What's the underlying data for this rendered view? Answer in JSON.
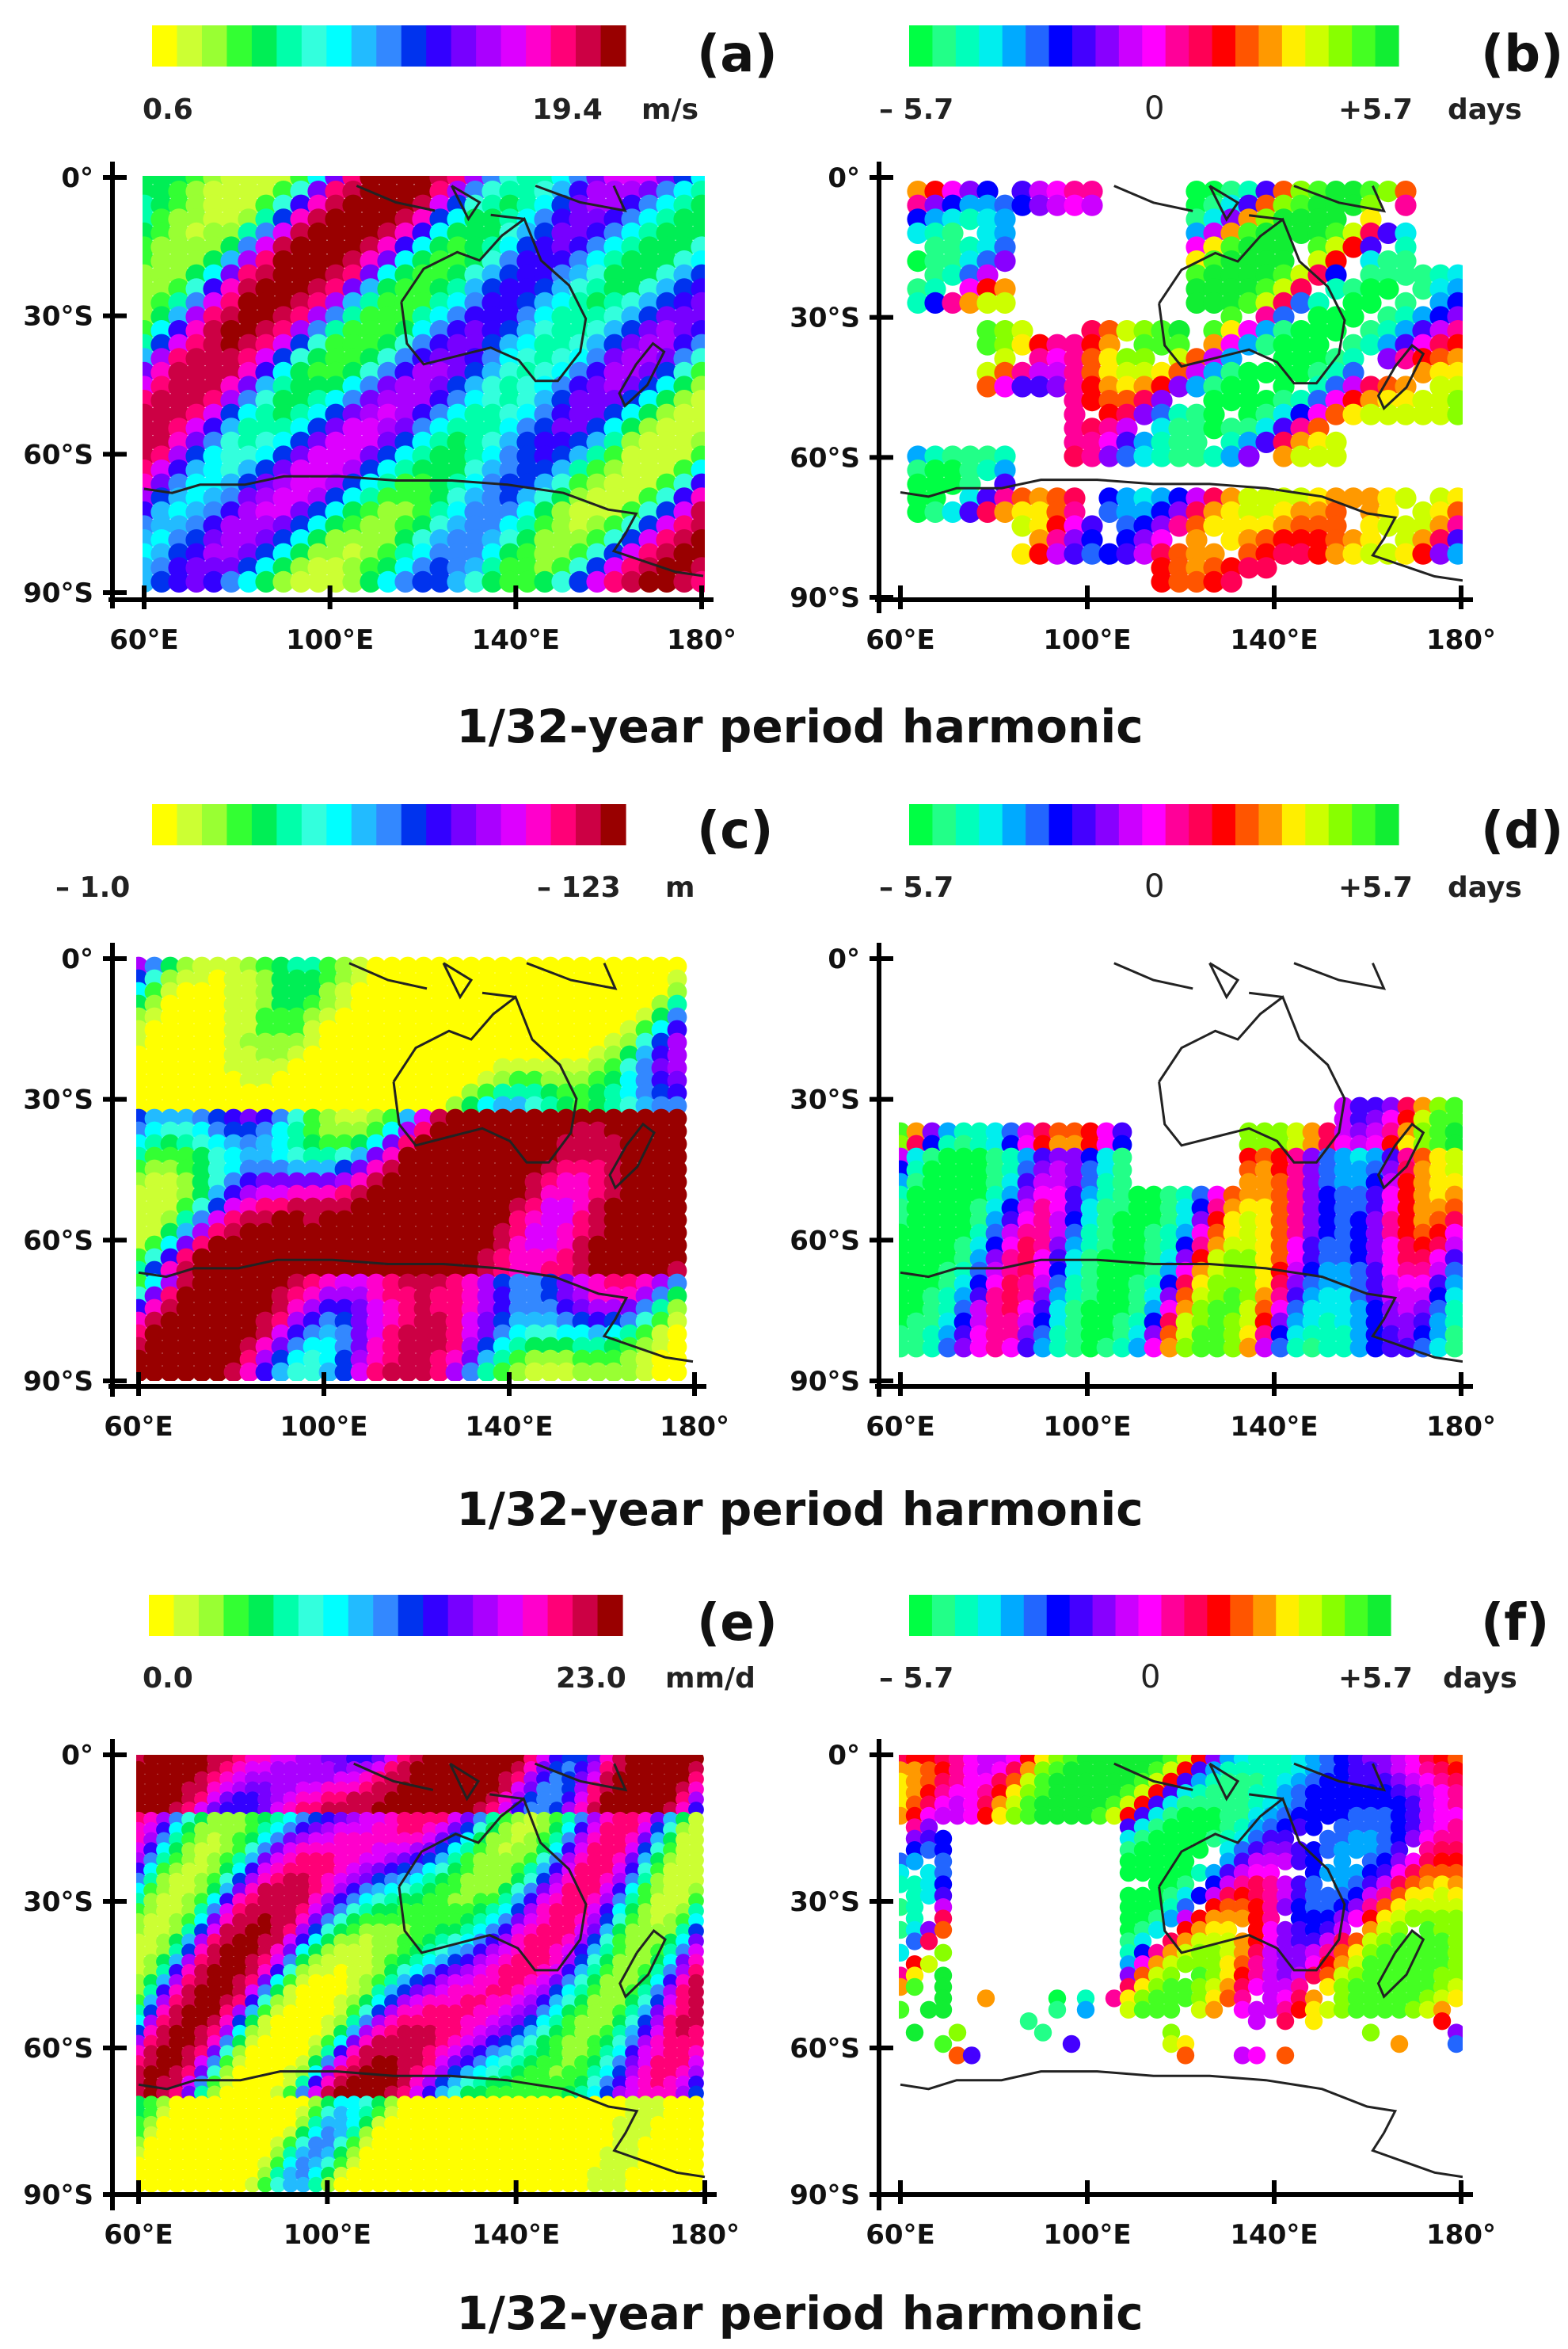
{
  "figure": {
    "harmonic_caption": "1/32-year period  harmonic"
  },
  "palettes": {
    "amplitude": [
      "#ffff00",
      "#ccff33",
      "#99ff33",
      "#33ff33",
      "#00ee55",
      "#00ffaa",
      "#33ffdd",
      "#00ffff",
      "#22bbff",
      "#3388ff",
      "#0033ee",
      "#3300ff",
      "#7700ff",
      "#aa00ff",
      "#dd00ff",
      "#ff00cc",
      "#ff0077",
      "#cc0044",
      "#990000"
    ],
    "phase": [
      "#00ff44",
      "#22ff88",
      "#00ffbb",
      "#00eeee",
      "#00aaff",
      "#2266ff",
      "#0000ff",
      "#4400ff",
      "#8800ff",
      "#cc00ff",
      "#ff00ff",
      "#ff0099",
      "#ff0055",
      "#ff0000",
      "#ff5500",
      "#ff9900",
      "#ffee00",
      "#ccff00",
      "#88ff00",
      "#44ff22",
      "#11ee33"
    ]
  },
  "chart_data": [
    {
      "panel": "(a)",
      "type": "heatmap",
      "variable": "amplitude",
      "colorbar": {
        "min_label": "0.6",
        "max_label": "19.4",
        "unit": "m/s"
      },
      "x_ticks": [
        "60°E",
        "100°E",
        "140°E",
        "180°"
      ],
      "y_ticks": [
        "0°",
        "30°S",
        "60°S",
        "90°S"
      ],
      "xlim": [
        60,
        180
      ],
      "ylim": [
        0,
        -90
      ],
      "title": "1/32-year period  harmonic"
    },
    {
      "panel": "(b)",
      "type": "heatmap",
      "variable": "phase",
      "colorbar": {
        "min_label": "– 5.7",
        "mid_label": "0",
        "max_label": "+5.7",
        "unit": "days"
      },
      "x_ticks": [
        "60°E",
        "100°E",
        "140°E",
        "180°"
      ],
      "y_ticks": [
        "0°",
        "30°S",
        "60°S",
        "90°S"
      ],
      "xlim": [
        60,
        180
      ],
      "ylim": [
        0,
        -90
      ]
    },
    {
      "panel": "(c)",
      "type": "heatmap",
      "variable": "amplitude",
      "colorbar": {
        "min_label": "– 1.0",
        "max_label": "– 123",
        "unit": "m"
      },
      "x_ticks": [
        "60°E",
        "100°E",
        "140°E",
        "180°"
      ],
      "y_ticks": [
        "0°",
        "30°S",
        "60°S",
        "90°S"
      ],
      "xlim": [
        60,
        180
      ],
      "ylim": [
        0,
        -90
      ],
      "title": "1/32-year period  harmonic"
    },
    {
      "panel": "(d)",
      "type": "heatmap",
      "variable": "phase",
      "colorbar": {
        "min_label": "– 5.7",
        "mid_label": "0",
        "max_label": "+5.7",
        "unit": "days"
      },
      "x_ticks": [
        "60°E",
        "100°E",
        "140°E",
        "180°"
      ],
      "y_ticks": [
        "0°",
        "30°S",
        "60°S",
        "90°S"
      ],
      "xlim": [
        60,
        180
      ],
      "ylim": [
        0,
        -90
      ]
    },
    {
      "panel": "(e)",
      "type": "heatmap",
      "variable": "amplitude",
      "colorbar": {
        "min_label": "0.0",
        "max_label": "23.0",
        "unit": "mm/d"
      },
      "x_ticks": [
        "60°E",
        "100°E",
        "140°E",
        "180°"
      ],
      "y_ticks": [
        "0°",
        "30°S",
        "60°S",
        "90°S"
      ],
      "xlim": [
        60,
        180
      ],
      "ylim": [
        0,
        -90
      ],
      "title": "1/32-year period  harmonic"
    },
    {
      "panel": "(f)",
      "type": "heatmap",
      "variable": "phase",
      "colorbar": {
        "min_label": "– 5.7",
        "mid_label": "0",
        "max_label": "+5.7",
        "unit": "days"
      },
      "x_ticks": [
        "60°E",
        "100°E",
        "140°E",
        "180°"
      ],
      "y_ticks": [
        "0°",
        "30°S",
        "60°S",
        "90°S"
      ],
      "xlim": [
        60,
        180
      ],
      "ylim": [
        0,
        -90
      ]
    }
  ]
}
